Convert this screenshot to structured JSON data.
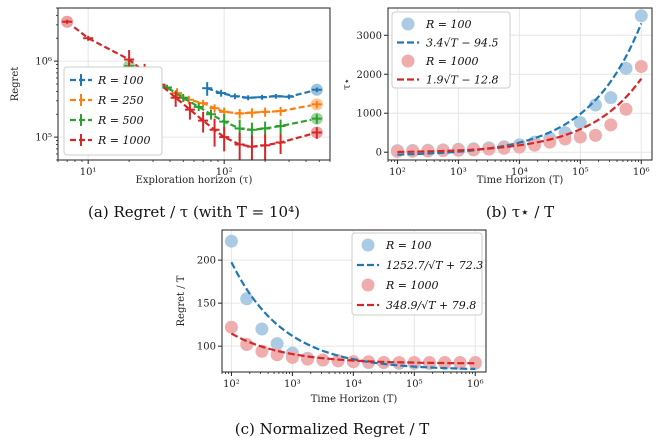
{
  "chart_data": [
    {
      "id": "a",
      "type": "line",
      "caption": "(a) Regret / τ (with T = 10⁴)",
      "xlabel": "Exploration horizon (τ)",
      "ylabel": "Regret",
      "xscale": "log",
      "yscale": "log",
      "xlim": [
        6,
        600
      ],
      "ylim": [
        50000,
        5000000
      ],
      "xticks": [
        {
          "v": 10,
          "l": "10¹"
        },
        {
          "v": 100,
          "l": "10²"
        }
      ],
      "yticks": [
        {
          "v": 100000,
          "l": "10⁵"
        },
        {
          "v": 1000000,
          "l": "10⁶"
        }
      ],
      "legend_position": "lower-left",
      "series": [
        {
          "name": "R = 100",
          "color": "#1f77b4",
          "x": [
            75,
            95,
            120,
            150,
            190,
            240,
            300,
            480
          ],
          "y": [
            440000,
            380000,
            345000,
            330000,
            335000,
            345000,
            340000,
            420000
          ],
          "err": [
            90000,
            40000,
            30000,
            25000,
            25000,
            25000,
            25000,
            30000
          ]
        },
        {
          "name": "R = 250",
          "color": "#ff7f0e",
          "x": [
            45,
            55,
            70,
            85,
            100,
            130,
            160,
            200,
            260,
            480
          ],
          "y": [
            380000,
            310000,
            280000,
            240000,
            215000,
            205000,
            210000,
            215000,
            220000,
            270000
          ],
          "err": [
            60000,
            40000,
            30000,
            30000,
            30000,
            30000,
            30000,
            30000,
            30000,
            30000
          ]
        },
        {
          "name": "R = 500",
          "color": "#2ca02c",
          "x": [
            20,
            28,
            38,
            50,
            65,
            80,
            100,
            130,
            160,
            200,
            260,
            480
          ],
          "y": [
            860000,
            600000,
            450000,
            330000,
            250000,
            200000,
            160000,
            130000,
            125000,
            130000,
            140000,
            175000
          ],
          "err": [
            90000,
            60000,
            40000,
            40000,
            30000,
            30000,
            40000,
            40000,
            30000,
            30000,
            30000,
            25000
          ]
        },
        {
          "name": "R = 1000",
          "color": "#d62728",
          "x": [
            7,
            10,
            20,
            26,
            34,
            44,
            56,
            70,
            85,
            100,
            130,
            160,
            200,
            260,
            480
          ],
          "y": [
            3300000,
            2000000,
            1050000,
            720000,
            490000,
            330000,
            230000,
            165000,
            125000,
            100000,
            80000,
            75000,
            78000,
            85000,
            115000
          ],
          "err": [
            200000,
            150000,
            350000,
            200000,
            120000,
            80000,
            60000,
            50000,
            50000,
            35000,
            35000,
            30000,
            30000,
            25000,
            20000
          ]
        }
      ]
    },
    {
      "id": "b",
      "type": "scatter",
      "caption": "(b) τ⋆ / T",
      "xlabel": "Time Horizon (T)",
      "ylabel": "τ⋆",
      "xscale": "log",
      "yscale": "linear",
      "xlim": [
        70,
        1500000
      ],
      "ylim": [
        -200,
        3700
      ],
      "xticks": [
        {
          "v": 100,
          "l": "10²"
        },
        {
          "v": 1000,
          "l": "10³"
        },
        {
          "v": 10000,
          "l": "10⁴"
        },
        {
          "v": 100000,
          "l": "10⁵"
        },
        {
          "v": 1000000,
          "l": "10⁶"
        }
      ],
      "yticks": [
        {
          "v": 0,
          "l": "0"
        },
        {
          "v": 1000,
          "l": "1000"
        },
        {
          "v": 2000,
          "l": "2000"
        },
        {
          "v": 3000,
          "l": "3000"
        }
      ],
      "legend_position": "top-left",
      "series": [
        {
          "name": "R = 100",
          "color": "#1f77b4",
          "kind": "scatter",
          "x": [
            100,
            178,
            316,
            562,
            1000,
            1778,
            3162,
            5623,
            10000,
            17783,
            31623,
            56234,
            100000,
            177828,
            316228,
            562341,
            1000000
          ],
          "y": [
            40,
            45,
            50,
            60,
            75,
            90,
            110,
            140,
            190,
            260,
            360,
            500,
            760,
            1210,
            1400,
            2150,
            3500
          ]
        },
        {
          "name": "3.4√T − 94.5",
          "color": "#1f77b4",
          "kind": "fit",
          "a": 3.4,
          "b": -94.5
        },
        {
          "name": "R = 1000",
          "color": "#d62728",
          "kind": "scatter",
          "x": [
            100,
            178,
            316,
            562,
            1000,
            1778,
            3162,
            5623,
            10000,
            17783,
            31623,
            56234,
            100000,
            177828,
            316228,
            562341,
            1000000
          ],
          "y": [
            20,
            25,
            30,
            40,
            50,
            60,
            80,
            100,
            130,
            180,
            260,
            340,
            390,
            430,
            700,
            1100,
            2200
          ]
        },
        {
          "name": "1.9√T − 12.8",
          "color": "#d62728",
          "kind": "fit",
          "a": 1.9,
          "b": -12.8
        }
      ]
    },
    {
      "id": "c",
      "type": "scatter",
      "caption": "(c) Normalized Regret / T",
      "xlabel": "Time Horizon (T)",
      "ylabel": "Regret / T",
      "xscale": "log",
      "yscale": "linear",
      "xlim": [
        70,
        1500000
      ],
      "ylim": [
        70,
        235
      ],
      "xticks": [
        {
          "v": 100,
          "l": "10²"
        },
        {
          "v": 1000,
          "l": "10³"
        },
        {
          "v": 10000,
          "l": "10⁴"
        },
        {
          "v": 100000,
          "l": "10⁵"
        },
        {
          "v": 1000000,
          "l": "10⁶"
        }
      ],
      "yticks": [
        {
          "v": 100,
          "l": "100"
        },
        {
          "v": 150,
          "l": "150"
        },
        {
          "v": 200,
          "l": "200"
        }
      ],
      "legend_position": "top-right",
      "series": [
        {
          "name": "R = 100",
          "color": "#1f77b4",
          "kind": "scatter",
          "x": [
            100,
            178,
            316,
            562,
            1000,
            1778,
            3162,
            5623,
            10000,
            17783,
            31623,
            56234,
            100000,
            177828,
            316228,
            562341,
            1000000
          ],
          "y": [
            222,
            155,
            120,
            103,
            92,
            86,
            84,
            83,
            82,
            81,
            81,
            80,
            80,
            80,
            80,
            80,
            80
          ]
        },
        {
          "name": "1252.7/√T + 72.3",
          "color": "#1f77b4",
          "kind": "fit",
          "a": 1252.7,
          "b": 72.3
        },
        {
          "name": "R = 1000",
          "color": "#d62728",
          "kind": "scatter",
          "x": [
            100,
            178,
            316,
            562,
            1000,
            1778,
            3162,
            5623,
            10000,
            17783,
            31623,
            56234,
            100000,
            177828,
            316228,
            562341,
            1000000
          ],
          "y": [
            122,
            102,
            94,
            90,
            87,
            85,
            84,
            83,
            82,
            82,
            81,
            81,
            81,
            81,
            81,
            81,
            81
          ]
        },
        {
          "name": "348.9/√T + 79.8",
          "color": "#d62728",
          "kind": "fit",
          "a": 348.9,
          "b": 79.8
        }
      ]
    }
  ]
}
